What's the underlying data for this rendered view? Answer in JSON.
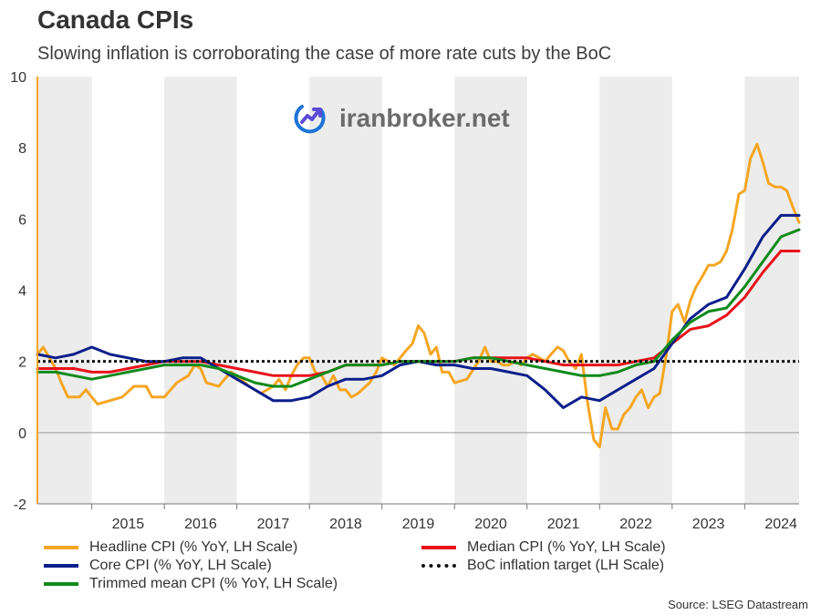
{
  "title": "Canada CPIs",
  "subtitle": "Slowing inflation is corroborating the case of more rate cuts by the BoC",
  "watermark": "iranbroker.net",
  "source": "Source: LSEG Datastream",
  "colors": {
    "headline": "#f5a623",
    "median": "#e8131b",
    "core": "#0b1f8a",
    "trimmed": "#118a1b",
    "target": "#111111",
    "left_axis": "#f5a623",
    "shade": "#ececec"
  },
  "chart_data": {
    "type": "line",
    "title": "Canada CPIs",
    "ylim": [
      -2,
      10
    ],
    "yticks": [
      "-2",
      "0",
      "2",
      "4",
      "6",
      "8",
      "10"
    ],
    "xlim": [
      2014.25,
      2024.75
    ],
    "xticks": [
      "2015",
      "2016",
      "2017",
      "2018",
      "2019",
      "2020",
      "2021",
      "2022",
      "2023",
      "2024"
    ],
    "shaded_years": [
      2014,
      2016,
      2018,
      2020,
      2022,
      2024
    ],
    "series": [
      {
        "key": "headline",
        "name": "Headline CPI (% YoY, LH Scale)",
        "points": [
          [
            2014.25,
            2.2
          ],
          [
            2014.33,
            2.4
          ],
          [
            2014.5,
            1.8
          ],
          [
            2014.58,
            1.4
          ],
          [
            2014.67,
            1.0
          ],
          [
            2014.83,
            1.0
          ],
          [
            2014.92,
            1.2
          ],
          [
            2015.0,
            1.0
          ],
          [
            2015.08,
            0.8
          ],
          [
            2015.25,
            0.9
          ],
          [
            2015.42,
            1.0
          ],
          [
            2015.58,
            1.3
          ],
          [
            2015.75,
            1.3
          ],
          [
            2015.83,
            1.0
          ],
          [
            2016.0,
            1.0
          ],
          [
            2016.17,
            1.4
          ],
          [
            2016.33,
            1.6
          ],
          [
            2016.42,
            1.9
          ],
          [
            2016.5,
            1.8
          ],
          [
            2016.58,
            1.4
          ],
          [
            2016.75,
            1.3
          ],
          [
            2016.83,
            1.5
          ],
          [
            2016.92,
            1.7
          ],
          [
            2017.0,
            1.6
          ],
          [
            2017.17,
            1.3
          ],
          [
            2017.33,
            1.1
          ],
          [
            2017.5,
            1.3
          ],
          [
            2017.58,
            1.5
          ],
          [
            2017.67,
            1.2
          ],
          [
            2017.75,
            1.6
          ],
          [
            2017.83,
            1.9
          ],
          [
            2017.92,
            2.1
          ],
          [
            2018.0,
            2.1
          ],
          [
            2018.08,
            1.7
          ],
          [
            2018.17,
            1.6
          ],
          [
            2018.25,
            1.3
          ],
          [
            2018.33,
            1.6
          ],
          [
            2018.42,
            1.2
          ],
          [
            2018.5,
            1.2
          ],
          [
            2018.58,
            1.0
          ],
          [
            2018.67,
            1.1
          ],
          [
            2018.83,
            1.4
          ],
          [
            2018.92,
            1.7
          ],
          [
            2019.0,
            2.1
          ],
          [
            2019.17,
            1.9
          ],
          [
            2019.33,
            2.3
          ],
          [
            2019.42,
            2.5
          ],
          [
            2019.5,
            3.0
          ],
          [
            2019.58,
            2.8
          ],
          [
            2019.67,
            2.2
          ],
          [
            2019.75,
            2.4
          ],
          [
            2019.83,
            1.7
          ],
          [
            2019.92,
            1.7
          ],
          [
            2020.0,
            1.4
          ],
          [
            2020.17,
            1.5
          ],
          [
            2020.33,
            2.0
          ],
          [
            2020.42,
            2.4
          ],
          [
            2020.5,
            2.0
          ],
          [
            2020.58,
            2.0
          ],
          [
            2020.67,
            1.9
          ],
          [
            2020.75,
            1.9
          ],
          [
            2020.83,
            2.0
          ],
          [
            2020.92,
            1.9
          ],
          [
            2021.0,
            2.1
          ],
          [
            2021.08,
            2.2
          ],
          [
            2021.17,
            2.1
          ],
          [
            2021.25,
            2.0
          ],
          [
            2021.33,
            2.2
          ],
          [
            2021.42,
            2.4
          ],
          [
            2021.5,
            2.3
          ],
          [
            2021.58,
            2.0
          ],
          [
            2021.67,
            1.8
          ],
          [
            2021.75,
            2.2
          ],
          [
            2021.83,
            0.9
          ],
          [
            2021.92,
            -0.2
          ],
          [
            2022.0,
            -0.4
          ],
          [
            2022.08,
            0.7
          ],
          [
            2022.17,
            0.1
          ],
          [
            2022.25,
            0.1
          ],
          [
            2022.33,
            0.5
          ],
          [
            2022.42,
            0.7
          ],
          [
            2022.5,
            1.0
          ],
          [
            2022.58,
            1.2
          ],
          [
            2022.67,
            0.7
          ],
          [
            2022.75,
            1.0
          ],
          [
            2022.83,
            1.1
          ],
          [
            2022.92,
            2.2
          ],
          [
            2023.0,
            3.4
          ],
          [
            2023.08,
            3.6
          ],
          [
            2023.17,
            3.1
          ],
          [
            2023.25,
            3.7
          ],
          [
            2023.33,
            4.1
          ],
          [
            2023.42,
            4.4
          ],
          [
            2023.5,
            4.7
          ],
          [
            2023.58,
            4.7
          ],
          [
            2023.67,
            4.8
          ],
          [
            2023.75,
            5.1
          ],
          [
            2023.83,
            5.7
          ],
          [
            2023.92,
            6.7
          ],
          [
            2024.0,
            6.8
          ],
          [
            2024.08,
            7.7
          ],
          [
            2024.17,
            8.1
          ],
          [
            2024.25,
            7.6
          ],
          [
            2024.33,
            7.0
          ],
          [
            2024.42,
            6.9
          ],
          [
            2024.5,
            6.9
          ],
          [
            2024.58,
            6.8
          ],
          [
            2024.67,
            6.3
          ],
          [
            2024.75,
            5.9
          ]
        ]
      },
      {
        "key": "median",
        "name": "Median CPI (% YoY, LH Scale)",
        "points": [
          [
            2014.25,
            1.8
          ],
          [
            2014.5,
            1.8
          ],
          [
            2014.75,
            1.8
          ],
          [
            2015.0,
            1.7
          ],
          [
            2015.25,
            1.7
          ],
          [
            2015.5,
            1.8
          ],
          [
            2015.75,
            1.9
          ],
          [
            2016.0,
            2.0
          ],
          [
            2016.25,
            2.0
          ],
          [
            2016.5,
            2.0
          ],
          [
            2016.75,
            1.9
          ],
          [
            2017.0,
            1.8
          ],
          [
            2017.25,
            1.7
          ],
          [
            2017.5,
            1.6
          ],
          [
            2017.75,
            1.6
          ],
          [
            2018.0,
            1.6
          ],
          [
            2018.25,
            1.7
          ],
          [
            2018.5,
            1.9
          ],
          [
            2018.75,
            1.9
          ],
          [
            2019.0,
            1.9
          ],
          [
            2019.25,
            2.0
          ],
          [
            2019.5,
            2.0
          ],
          [
            2019.75,
            2.0
          ],
          [
            2020.0,
            2.0
          ],
          [
            2020.25,
            2.1
          ],
          [
            2020.5,
            2.1
          ],
          [
            2020.75,
            2.1
          ],
          [
            2021.0,
            2.1
          ],
          [
            2021.25,
            2.0
          ],
          [
            2021.5,
            1.9
          ],
          [
            2021.75,
            1.9
          ],
          [
            2022.0,
            1.9
          ],
          [
            2022.25,
            1.9
          ],
          [
            2022.5,
            2.0
          ],
          [
            2022.75,
            2.1
          ],
          [
            2023.0,
            2.5
          ],
          [
            2023.25,
            2.9
          ],
          [
            2023.5,
            3.0
          ],
          [
            2023.75,
            3.3
          ],
          [
            2024.0,
            3.8
          ],
          [
            2024.25,
            4.5
          ],
          [
            2024.5,
            5.1
          ],
          [
            2024.75,
            5.1
          ]
        ]
      },
      {
        "key": "core",
        "name": "Core CPI (% YoY, LH Scale)",
        "points": [
          [
            2014.25,
            2.2
          ],
          [
            2014.5,
            2.1
          ],
          [
            2014.75,
            2.2
          ],
          [
            2015.0,
            2.4
          ],
          [
            2015.25,
            2.2
          ],
          [
            2015.5,
            2.1
          ],
          [
            2015.75,
            2.0
          ],
          [
            2016.0,
            2.0
          ],
          [
            2016.25,
            2.1
          ],
          [
            2016.5,
            2.1
          ],
          [
            2016.75,
            1.8
          ],
          [
            2017.0,
            1.5
          ],
          [
            2017.25,
            1.2
          ],
          [
            2017.5,
            0.9
          ],
          [
            2017.75,
            0.9
          ],
          [
            2018.0,
            1.0
          ],
          [
            2018.25,
            1.3
          ],
          [
            2018.5,
            1.5
          ],
          [
            2018.75,
            1.5
          ],
          [
            2019.0,
            1.6
          ],
          [
            2019.25,
            1.9
          ],
          [
            2019.5,
            2.0
          ],
          [
            2019.75,
            1.9
          ],
          [
            2020.0,
            1.9
          ],
          [
            2020.25,
            1.8
          ],
          [
            2020.5,
            1.8
          ],
          [
            2020.75,
            1.7
          ],
          [
            2021.0,
            1.6
          ],
          [
            2021.25,
            1.2
          ],
          [
            2021.5,
            0.7
          ],
          [
            2021.75,
            1.0
          ],
          [
            2022.0,
            0.9
          ],
          [
            2022.25,
            1.2
          ],
          [
            2022.5,
            1.5
          ],
          [
            2022.75,
            1.8
          ],
          [
            2023.0,
            2.5
          ],
          [
            2023.25,
            3.2
          ],
          [
            2023.5,
            3.6
          ],
          [
            2023.75,
            3.8
          ],
          [
            2024.0,
            4.6
          ],
          [
            2024.25,
            5.5
          ],
          [
            2024.5,
            6.1
          ],
          [
            2024.75,
            6.1
          ]
        ]
      },
      {
        "key": "trimmed",
        "name": "Trimmed mean CPI (% YoY, LH Scale)",
        "points": [
          [
            2014.25,
            1.7
          ],
          [
            2014.5,
            1.7
          ],
          [
            2014.75,
            1.6
          ],
          [
            2015.0,
            1.5
          ],
          [
            2015.25,
            1.6
          ],
          [
            2015.5,
            1.7
          ],
          [
            2015.75,
            1.8
          ],
          [
            2016.0,
            1.9
          ],
          [
            2016.25,
            1.9
          ],
          [
            2016.5,
            1.9
          ],
          [
            2016.75,
            1.8
          ],
          [
            2017.0,
            1.6
          ],
          [
            2017.25,
            1.4
          ],
          [
            2017.5,
            1.3
          ],
          [
            2017.75,
            1.3
          ],
          [
            2018.0,
            1.5
          ],
          [
            2018.25,
            1.7
          ],
          [
            2018.5,
            1.9
          ],
          [
            2018.75,
            1.9
          ],
          [
            2019.0,
            1.9
          ],
          [
            2019.25,
            2.0
          ],
          [
            2019.5,
            2.0
          ],
          [
            2019.75,
            2.0
          ],
          [
            2020.0,
            2.0
          ],
          [
            2020.25,
            2.1
          ],
          [
            2020.5,
            2.1
          ],
          [
            2020.75,
            2.0
          ],
          [
            2021.0,
            1.9
          ],
          [
            2021.25,
            1.8
          ],
          [
            2021.5,
            1.7
          ],
          [
            2021.75,
            1.6
          ],
          [
            2022.0,
            1.6
          ],
          [
            2022.25,
            1.7
          ],
          [
            2022.5,
            1.9
          ],
          [
            2022.75,
            2.0
          ],
          [
            2023.0,
            2.6
          ],
          [
            2023.25,
            3.1
          ],
          [
            2023.5,
            3.4
          ],
          [
            2023.75,
            3.5
          ],
          [
            2024.0,
            4.1
          ],
          [
            2024.25,
            4.8
          ],
          [
            2024.5,
            5.5
          ],
          [
            2024.75,
            5.7
          ]
        ]
      }
    ],
    "reference_line": {
      "key": "target",
      "name": "BoC inflation target (LH Scale)",
      "value": 2.0
    },
    "legend_position": "bottom"
  }
}
